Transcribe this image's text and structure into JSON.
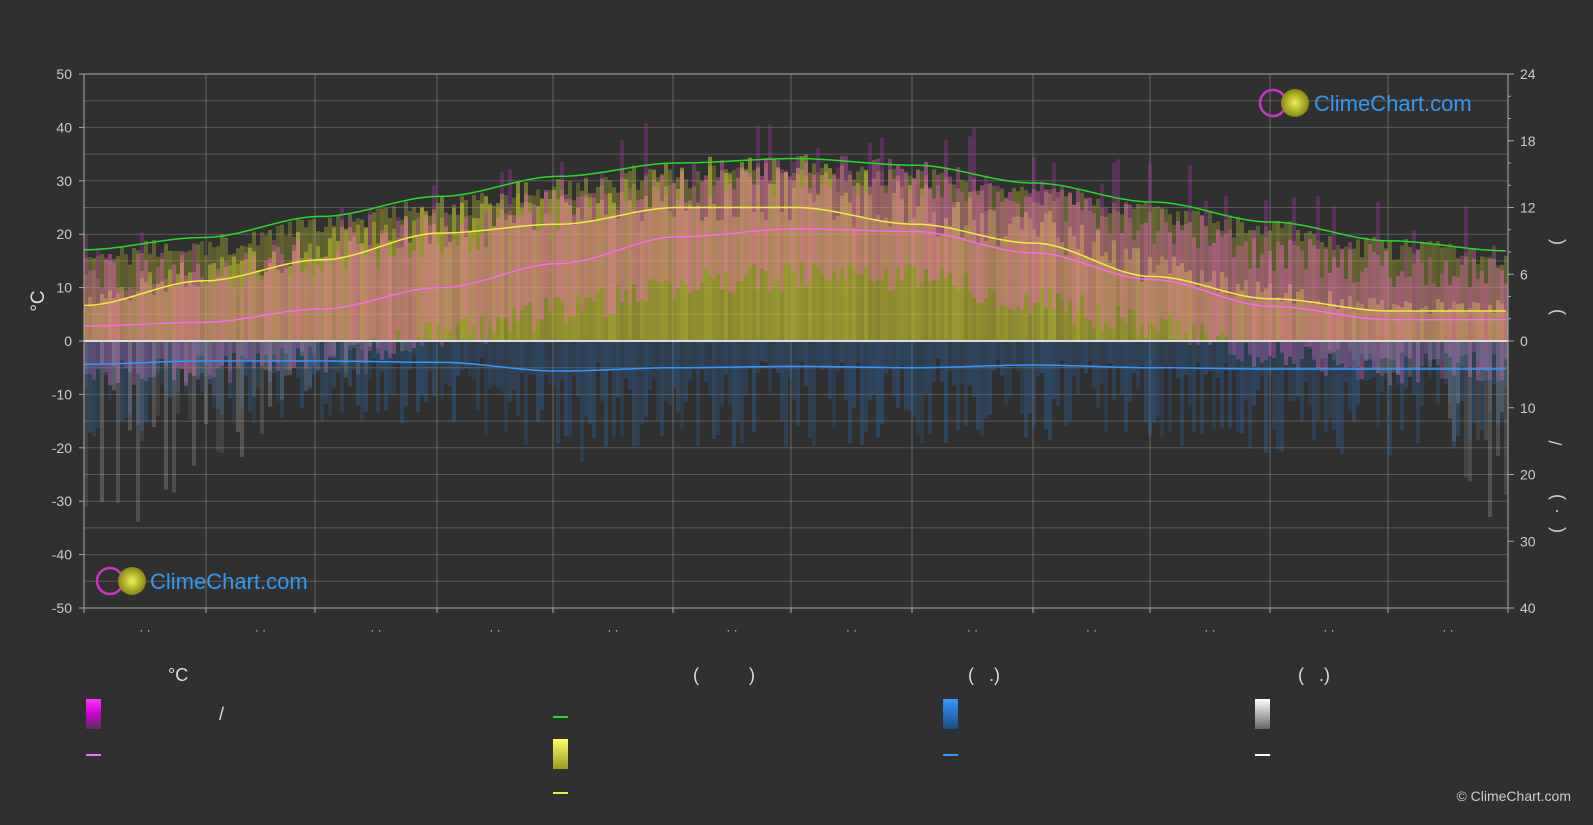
{
  "chart_data": {
    "type": "area",
    "left_axis": {
      "label": "°C",
      "ticks": [
        "50",
        "40",
        "30",
        "20",
        "10",
        "0",
        "-10",
        "-20",
        "-30",
        "-40",
        "-50"
      ],
      "range": [
        -50,
        50
      ]
    },
    "right_axis_top": {
      "ticks": [
        "24",
        "18",
        "12",
        "6",
        "0"
      ],
      "range": [
        0,
        24
      ],
      "label_marks": [
        "(",
        ")"
      ]
    },
    "right_axis_bottom": {
      "ticks": [
        "10",
        "20",
        "30",
        "40"
      ],
      "range": [
        0,
        40
      ],
      "label_marks": [
        "/",
        "(",
        "·",
        ")"
      ]
    },
    "x_tick_labels": [
      "· ·",
      "· ·",
      "· ·",
      "· ·",
      "· ·",
      "· ·",
      "· ·",
      "· ·",
      "· ·",
      "· ·",
      "· ·",
      "· ·"
    ],
    "grid": true,
    "series": [
      {
        "id": "daylight",
        "color": "#22dd22",
        "values": [
          8.2,
          9.3,
          11.2,
          13.0,
          14.8,
          16.0,
          16.4,
          15.8,
          14.2,
          12.5,
          10.7,
          9.0,
          8.1
        ]
      },
      {
        "id": "sunshine",
        "color": "#eeee44",
        "values": [
          3.2,
          5.4,
          7.3,
          9.7,
          10.5,
          12.0,
          12.0,
          10.5,
          8.8,
          5.8,
          3.8,
          2.7,
          2.7
        ]
      },
      {
        "id": "mean_temp",
        "color": "#ff66ff",
        "values": [
          2.8,
          3.5,
          6.0,
          10.0,
          14.5,
          19.5,
          21.0,
          20.5,
          16.5,
          11.5,
          6.5,
          4.0,
          4.0
        ]
      },
      {
        "id": "rain",
        "color": "#3399ff",
        "values": [
          3.5,
          3.0,
          3.0,
          3.2,
          4.5,
          4.0,
          3.8,
          4.0,
          3.6,
          4.0,
          4.2,
          4.2,
          4.2
        ]
      },
      {
        "id": "snow",
        "color": "#ffffff",
        "values": [
          0.5,
          0.3,
          0.1,
          0,
          0,
          0,
          0,
          0,
          0,
          0,
          0,
          0.1,
          0.4
        ]
      }
    ],
    "colors": {
      "temp_band": "#ff66cc",
      "sun_fill": "#cccc33",
      "rain_fill": "#2a6aa8",
      "snow_fill": "#9a9a9a",
      "grid": "#5a5a5a",
      "axis": "#cccccc"
    }
  },
  "watermark": {
    "text": "ClimeChart.com"
  },
  "legend": {
    "col1": {
      "header": "°C",
      "row1_text": "/"
    },
    "col2": {
      "header": "(          )"
    },
    "col3": {
      "header": "(   .)"
    },
    "col4": {
      "header": "(   .)"
    }
  },
  "copyright": "© ClimeChart.com"
}
